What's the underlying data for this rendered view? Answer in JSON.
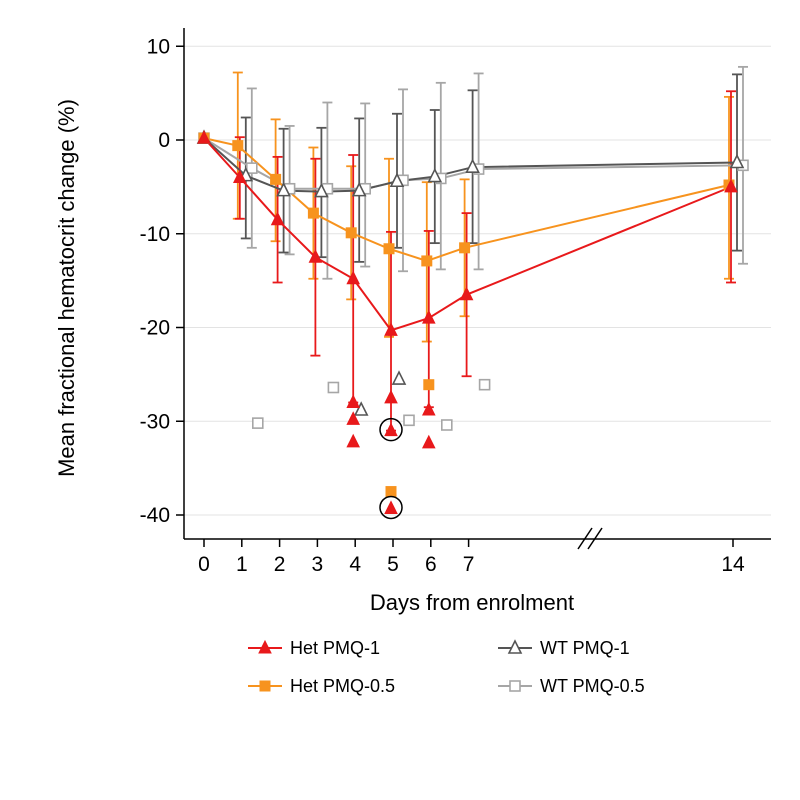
{
  "chart_data": {
    "type": "line",
    "xlabel": "Days from enrolment",
    "ylabel": "Mean fractional hematocrit change (%)",
    "x_ticks": [
      "0",
      "1",
      "2",
      "3",
      "4",
      "5",
      "6",
      "7",
      "14"
    ],
    "y_ticks": [
      "10",
      "0",
      "-10",
      "-20",
      "-30",
      "-40"
    ],
    "ylim": [
      -42,
      11
    ],
    "axis_break": "between 7 and 14",
    "grid": true,
    "legend_position": "bottom",
    "series": [
      {
        "name": "Het PMQ-1",
        "color": "#e8191b",
        "marker": "filled-triangle",
        "points": [
          {
            "x": 0,
            "y": 0.2,
            "lo": 0.2,
            "hi": 0.2
          },
          {
            "x": 1,
            "y": -4.0,
            "lo": -8.4,
            "hi": 0.3
          },
          {
            "x": 2,
            "y": -8.5,
            "lo": -15.2,
            "hi": -1.8
          },
          {
            "x": 3,
            "y": -12.5,
            "lo": -23.0,
            "hi": -2.0
          },
          {
            "x": 4,
            "y": -14.8,
            "lo": -28.0,
            "hi": -1.6
          },
          {
            "x": 5,
            "y": -20.3,
            "lo": -31.0,
            "hi": -9.8
          },
          {
            "x": 6,
            "y": -19.0,
            "lo": -28.5,
            "hi": -9.7
          },
          {
            "x": 7,
            "y": -16.5,
            "lo": -25.2,
            "hi": -7.8
          },
          {
            "x": 14,
            "y": -5.0,
            "lo": -15.2,
            "hi": 5.2
          }
        ],
        "outliers": [
          {
            "x": 4,
            "y": -28.0
          },
          {
            "x": 4,
            "y": -29.8
          },
          {
            "x": 4,
            "y": -32.2
          },
          {
            "x": 5,
            "y": -27.5
          },
          {
            "x": 5,
            "y": -31.0
          },
          {
            "x": 5,
            "y": -39.3
          },
          {
            "x": 6,
            "y": -28.8
          },
          {
            "x": 6,
            "y": -32.3
          }
        ]
      },
      {
        "name": "Het PMQ-0.5",
        "color": "#f7931e",
        "marker": "filled-square",
        "points": [
          {
            "x": 0,
            "y": 0.2,
            "lo": 0.2,
            "hi": 0.2
          },
          {
            "x": 1,
            "y": -0.6,
            "lo": -8.4,
            "hi": 7.2
          },
          {
            "x": 2,
            "y": -4.2,
            "lo": -10.8,
            "hi": 2.2
          },
          {
            "x": 3,
            "y": -7.8,
            "lo": -14.8,
            "hi": -0.8
          },
          {
            "x": 4,
            "y": -9.9,
            "lo": -17.0,
            "hi": -2.8
          },
          {
            "x": 5,
            "y": -11.6,
            "lo": -21.0,
            "hi": -2.0
          },
          {
            "x": 6,
            "y": -12.9,
            "lo": -21.5,
            "hi": -4.5
          },
          {
            "x": 7,
            "y": -11.5,
            "lo": -18.8,
            "hi": -4.2
          },
          {
            "x": 14,
            "y": -4.8,
            "lo": -14.8,
            "hi": 4.6
          }
        ],
        "outliers": [
          {
            "x": 6,
            "y": -26.1
          },
          {
            "x": 5,
            "y": -37.5
          }
        ]
      },
      {
        "name": "WT PMQ-1",
        "color": "#555555",
        "marker": "hollow-triangle",
        "points": [
          {
            "x": 0,
            "y": 0.2,
            "lo": 0.2,
            "hi": 0.2
          },
          {
            "x": 1,
            "y": -3.8,
            "lo": -10.5,
            "hi": 2.4
          },
          {
            "x": 2,
            "y": -5.4,
            "lo": -12.0,
            "hi": 1.2
          },
          {
            "x": 3,
            "y": -5.5,
            "lo": -12.5,
            "hi": 1.3
          },
          {
            "x": 4,
            "y": -5.4,
            "lo": -13.0,
            "hi": 2.3
          },
          {
            "x": 5,
            "y": -4.4,
            "lo": -11.5,
            "hi": 2.8
          },
          {
            "x": 6,
            "y": -3.9,
            "lo": -11.0,
            "hi": 3.2
          },
          {
            "x": 7,
            "y": -2.9,
            "lo": -11.0,
            "hi": 5.3
          },
          {
            "x": 14,
            "y": -2.4,
            "lo": -11.8,
            "hi": 7.0
          }
        ],
        "outliers": [
          {
            "x": 4,
            "y": -28.8
          },
          {
            "x": 5,
            "y": -25.5
          }
        ]
      },
      {
        "name": "WT PMQ-0.5",
        "color": "#a6a6a6",
        "marker": "hollow-square",
        "points": [
          {
            "x": 0,
            "y": 0.2,
            "lo": 0.2,
            "hi": 0.2
          },
          {
            "x": 1,
            "y": -3.0,
            "lo": -11.5,
            "hi": 5.5
          },
          {
            "x": 2,
            "y": -5.2,
            "lo": -12.2,
            "hi": 1.5
          },
          {
            "x": 3,
            "y": -5.2,
            "lo": -14.8,
            "hi": 4.0
          },
          {
            "x": 4,
            "y": -5.2,
            "lo": -13.5,
            "hi": 3.9
          },
          {
            "x": 5,
            "y": -4.3,
            "lo": -14.0,
            "hi": 5.4
          },
          {
            "x": 6,
            "y": -4.1,
            "lo": -13.8,
            "hi": 6.1
          },
          {
            "x": 7,
            "y": -3.1,
            "lo": -13.8,
            "hi": 7.1
          },
          {
            "x": 14,
            "y": -2.7,
            "lo": -13.2,
            "hi": 7.8
          }
        ],
        "outliers": [
          {
            "x": 1,
            "y": -30.2
          },
          {
            "x": 3,
            "y": -26.4
          },
          {
            "x": 5,
            "y": -29.9
          },
          {
            "x": 6,
            "y": -30.4
          },
          {
            "x": 7,
            "y": -26.1
          }
        ]
      }
    ],
    "highlighted_points": [
      {
        "x": 5,
        "y": -31.0
      },
      {
        "x": 5,
        "y": -39.3
      }
    ]
  }
}
